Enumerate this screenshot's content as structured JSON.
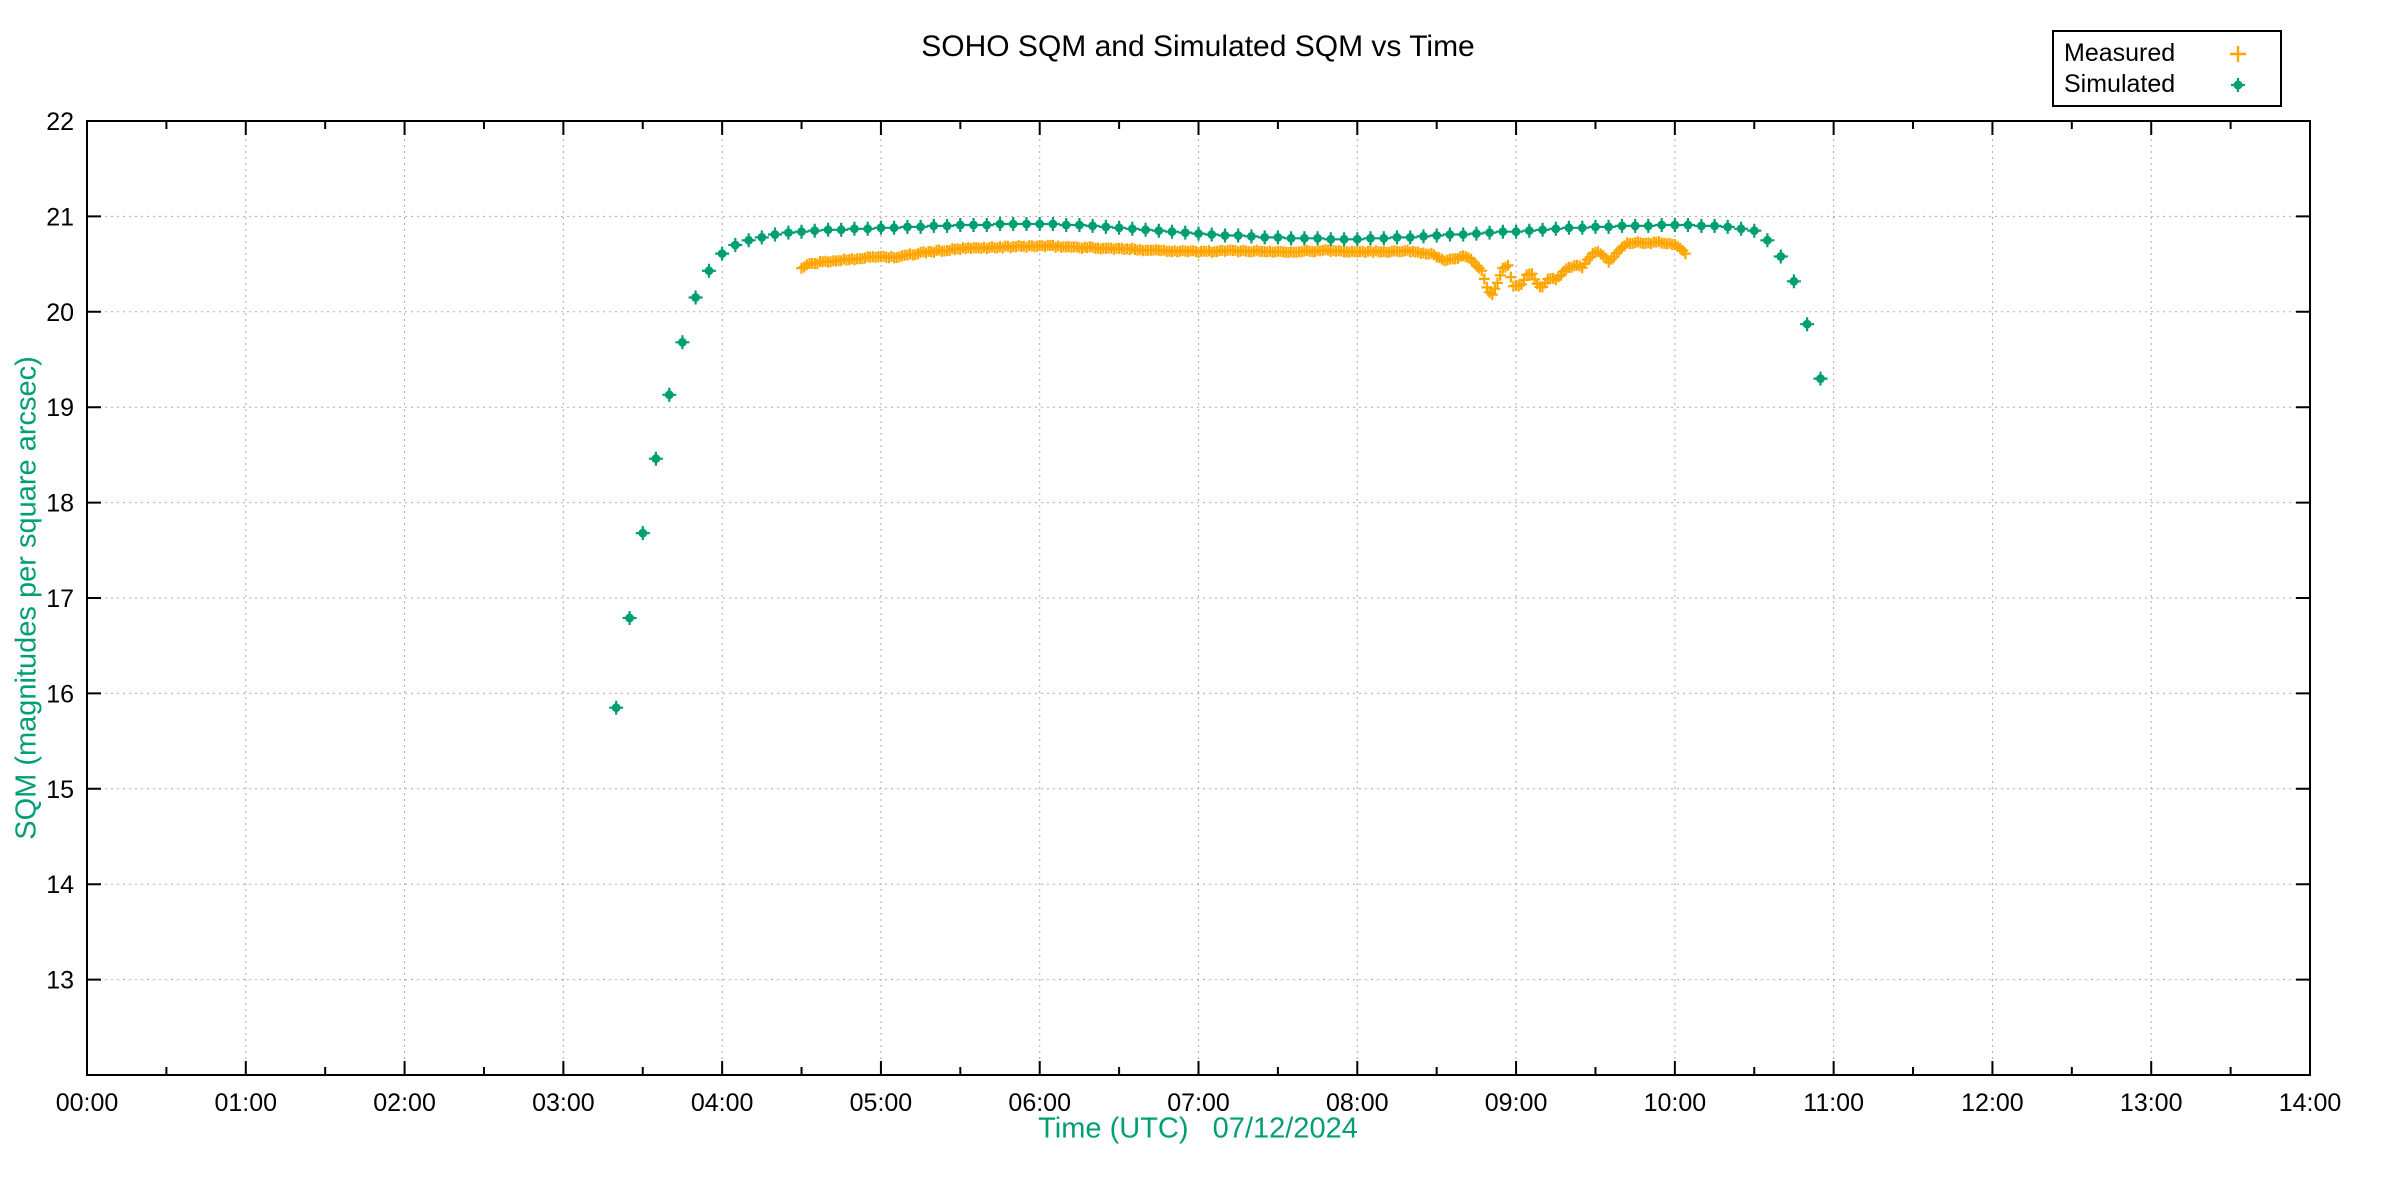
{
  "title": "SOHO SQM and Simulated SQM vs Time",
  "legend": {
    "position": "top-right",
    "items": [
      {
        "label": "Measured",
        "marker": "plus",
        "color": "#ffa500"
      },
      {
        "label": "Simulated",
        "marker": "dot",
        "color": "#009e73"
      }
    ]
  },
  "chart_data": {
    "type": "scatter",
    "title": "SOHO SQM and Simulated SQM vs Time",
    "xlabel": "Time (UTC)   07/12/2024",
    "ylabel": "SQM (magnitudes per square arcsec)",
    "date": "07/12/2024",
    "xlim_hours": [
      0,
      14
    ],
    "ylim": [
      12,
      22
    ],
    "x_ticks": [
      "00:00",
      "01:00",
      "02:00",
      "03:00",
      "04:00",
      "05:00",
      "06:00",
      "07:00",
      "08:00",
      "09:00",
      "10:00",
      "11:00",
      "12:00",
      "13:00",
      "14:00"
    ],
    "y_ticks": [
      13,
      14,
      15,
      16,
      17,
      18,
      19,
      20,
      21,
      22
    ],
    "grid": true,
    "grid_color": "#ababab",
    "axis_label_color": "#009e73",
    "legend_position": "top-right",
    "series": [
      {
        "name": "Measured",
        "marker": "plus",
        "color": "#ffa500",
        "cadence_minutes": 1,
        "anchors_hours_sqm": [
          [
            4.5,
            20.46
          ],
          [
            4.55,
            20.5
          ],
          [
            4.63,
            20.52
          ],
          [
            4.85,
            20.56
          ],
          [
            5.0,
            20.58
          ],
          [
            5.1,
            20.57
          ],
          [
            5.26,
            20.62
          ],
          [
            5.5,
            20.66
          ],
          [
            5.8,
            20.68
          ],
          [
            6.0,
            20.69
          ],
          [
            6.2,
            20.68
          ],
          [
            6.5,
            20.66
          ],
          [
            7.0,
            20.63
          ],
          [
            7.25,
            20.64
          ],
          [
            7.5,
            20.63
          ],
          [
            7.8,
            20.64
          ],
          [
            8.1,
            20.63
          ],
          [
            8.3,
            20.64
          ],
          [
            8.46,
            20.61
          ],
          [
            8.55,
            20.54
          ],
          [
            8.62,
            20.55
          ],
          [
            8.68,
            20.59
          ],
          [
            8.73,
            20.53
          ],
          [
            8.78,
            20.44
          ],
          [
            8.82,
            20.24
          ],
          [
            8.85,
            20.17
          ],
          [
            8.88,
            20.3
          ],
          [
            8.92,
            20.47
          ],
          [
            8.95,
            20.48
          ],
          [
            8.98,
            20.28
          ],
          [
            9.02,
            20.26
          ],
          [
            9.07,
            20.39
          ],
          [
            9.1,
            20.4
          ],
          [
            9.14,
            20.27
          ],
          [
            9.17,
            20.26
          ],
          [
            9.21,
            20.36
          ],
          [
            9.25,
            20.33
          ],
          [
            9.31,
            20.44
          ],
          [
            9.35,
            20.47
          ],
          [
            9.38,
            20.49
          ],
          [
            9.42,
            20.46
          ],
          [
            9.45,
            20.54
          ],
          [
            9.48,
            20.61
          ],
          [
            9.52,
            20.63
          ],
          [
            9.56,
            20.57
          ],
          [
            9.59,
            20.52
          ],
          [
            9.62,
            20.58
          ],
          [
            9.66,
            20.67
          ],
          [
            9.7,
            20.72
          ],
          [
            9.75,
            20.73
          ],
          [
            9.82,
            20.71
          ],
          [
            9.88,
            20.73
          ],
          [
            9.95,
            20.72
          ],
          [
            10.0,
            20.7
          ],
          [
            10.04,
            20.67
          ],
          [
            10.07,
            20.61
          ],
          [
            10.08,
            20.58
          ]
        ]
      },
      {
        "name": "Simulated",
        "marker": "dot",
        "color": "#009e73",
        "cadence_minutes": 5,
        "points_hours_sqm": [
          [
            3.333,
            15.85
          ],
          [
            3.417,
            16.79
          ],
          [
            3.5,
            17.68
          ],
          [
            3.583,
            18.46
          ],
          [
            3.667,
            19.13
          ],
          [
            3.75,
            19.68
          ],
          [
            3.833,
            20.15
          ],
          [
            3.917,
            20.43
          ],
          [
            4.0,
            20.61
          ],
          [
            4.083,
            20.7
          ],
          [
            4.167,
            20.75
          ],
          [
            4.25,
            20.78
          ],
          [
            4.333,
            20.81
          ],
          [
            4.417,
            20.83
          ],
          [
            4.5,
            20.84
          ],
          [
            4.583,
            20.85
          ],
          [
            4.667,
            20.86
          ],
          [
            4.75,
            20.86
          ],
          [
            4.833,
            20.87
          ],
          [
            4.917,
            20.87
          ],
          [
            5.0,
            20.88
          ],
          [
            5.083,
            20.88
          ],
          [
            5.167,
            20.89
          ],
          [
            5.25,
            20.89
          ],
          [
            5.333,
            20.9
          ],
          [
            5.417,
            20.9
          ],
          [
            5.5,
            20.91
          ],
          [
            5.583,
            20.91
          ],
          [
            5.667,
            20.91
          ],
          [
            5.75,
            20.92
          ],
          [
            5.833,
            20.92
          ],
          [
            5.917,
            20.92
          ],
          [
            6.0,
            20.92
          ],
          [
            6.083,
            20.92
          ],
          [
            6.167,
            20.91
          ],
          [
            6.25,
            20.91
          ],
          [
            6.333,
            20.9
          ],
          [
            6.417,
            20.89
          ],
          [
            6.5,
            20.88
          ],
          [
            6.583,
            20.87
          ],
          [
            6.667,
            20.86
          ],
          [
            6.75,
            20.85
          ],
          [
            6.833,
            20.84
          ],
          [
            6.917,
            20.83
          ],
          [
            7.0,
            20.82
          ],
          [
            7.083,
            20.81
          ],
          [
            7.167,
            20.8
          ],
          [
            7.25,
            20.8
          ],
          [
            7.333,
            20.79
          ],
          [
            7.417,
            20.78
          ],
          [
            7.5,
            20.78
          ],
          [
            7.583,
            20.77
          ],
          [
            7.667,
            20.77
          ],
          [
            7.75,
            20.77
          ],
          [
            7.833,
            20.76
          ],
          [
            7.917,
            20.76
          ],
          [
            8.0,
            20.76
          ],
          [
            8.083,
            20.77
          ],
          [
            8.167,
            20.77
          ],
          [
            8.25,
            20.78
          ],
          [
            8.333,
            20.78
          ],
          [
            8.417,
            20.79
          ],
          [
            8.5,
            20.8
          ],
          [
            8.583,
            20.81
          ],
          [
            8.667,
            20.81
          ],
          [
            8.75,
            20.82
          ],
          [
            8.833,
            20.83
          ],
          [
            8.917,
            20.84
          ],
          [
            9.0,
            20.84
          ],
          [
            9.083,
            20.85
          ],
          [
            9.167,
            20.86
          ],
          [
            9.25,
            20.87
          ],
          [
            9.333,
            20.88
          ],
          [
            9.417,
            20.88
          ],
          [
            9.5,
            20.89
          ],
          [
            9.583,
            20.89
          ],
          [
            9.667,
            20.9
          ],
          [
            9.75,
            20.9
          ],
          [
            9.833,
            20.9
          ],
          [
            9.917,
            20.91
          ],
          [
            10.0,
            20.91
          ],
          [
            10.083,
            20.91
          ],
          [
            10.167,
            20.9
          ],
          [
            10.25,
            20.9
          ],
          [
            10.333,
            20.89
          ],
          [
            10.417,
            20.87
          ],
          [
            10.5,
            20.85
          ],
          [
            10.583,
            20.75
          ],
          [
            10.667,
            20.58
          ],
          [
            10.75,
            20.32
          ],
          [
            10.833,
            19.87
          ],
          [
            10.917,
            19.3
          ]
        ]
      }
    ]
  }
}
